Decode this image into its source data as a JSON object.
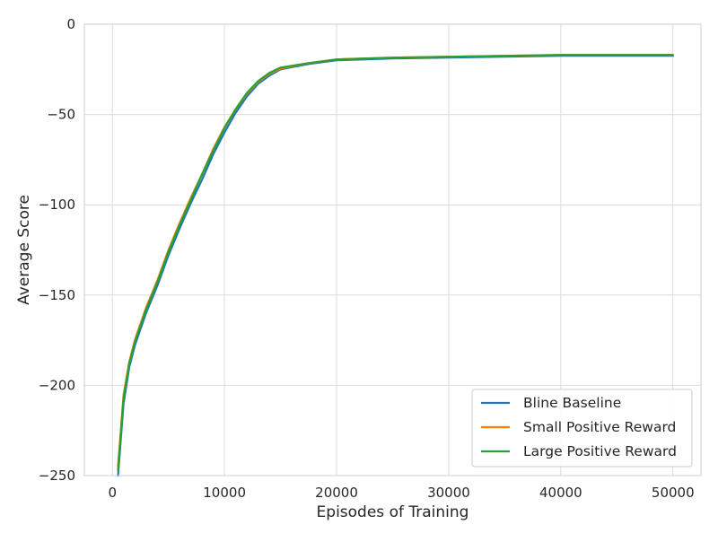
{
  "chart_data": {
    "type": "line",
    "title": "",
    "xlabel": "Episodes of Training",
    "ylabel": "Average Score",
    "xlim": [
      -2500,
      52500
    ],
    "ylim": [
      -250,
      0
    ],
    "xticks": [
      0,
      10000,
      20000,
      30000,
      40000,
      50000
    ],
    "yticks": [
      0,
      -50,
      -100,
      -150,
      -200,
      -250
    ],
    "xtick_labels": [
      "0",
      "10000",
      "20000",
      "30000",
      "40000",
      "50000"
    ],
    "ytick_labels": [
      "0",
      "−50",
      "−100",
      "−150",
      "−200",
      "−250"
    ],
    "grid": true,
    "legend_position": "lower-right",
    "x": [
      500,
      1000,
      1500,
      2000,
      3000,
      4000,
      5000,
      6000,
      7000,
      8000,
      9000,
      10000,
      11000,
      12000,
      13000,
      14000,
      15000,
      17500,
      20000,
      25000,
      30000,
      35000,
      40000,
      45000,
      50000
    ],
    "series": [
      {
        "name": "Bline Baseline",
        "color": "#1f77b4",
        "values": [
          -250,
          -210,
          -190,
          -178,
          -160,
          -145,
          -128,
          -113,
          -99,
          -86,
          -72,
          -60,
          -49,
          -40,
          -33,
          -28.5,
          -25,
          -22,
          -20,
          -19,
          -18.5,
          -18,
          -17.5,
          -17.5,
          -17.5
        ]
      },
      {
        "name": "Small Positive Reward",
        "color": "#ff7f0e",
        "values": [
          -245,
          -205,
          -187,
          -175,
          -157,
          -142,
          -125,
          -110,
          -96,
          -83,
          -69,
          -57,
          -47,
          -38.5,
          -32,
          -27.5,
          -24.5,
          -21.5,
          -19.5,
          -18.5,
          -18,
          -17.5,
          -17,
          -17,
          -17
        ]
      },
      {
        "name": "Large Positive Reward",
        "color": "#2ca02c",
        "values": [
          -247,
          -207,
          -188,
          -176,
          -158,
          -143,
          -126,
          -111,
          -97,
          -83,
          -70,
          -57.5,
          -47,
          -38,
          -31.5,
          -27,
          -24,
          -21.5,
          -19.5,
          -18.5,
          -18,
          -17.5,
          -17,
          -17,
          -17
        ]
      }
    ]
  }
}
